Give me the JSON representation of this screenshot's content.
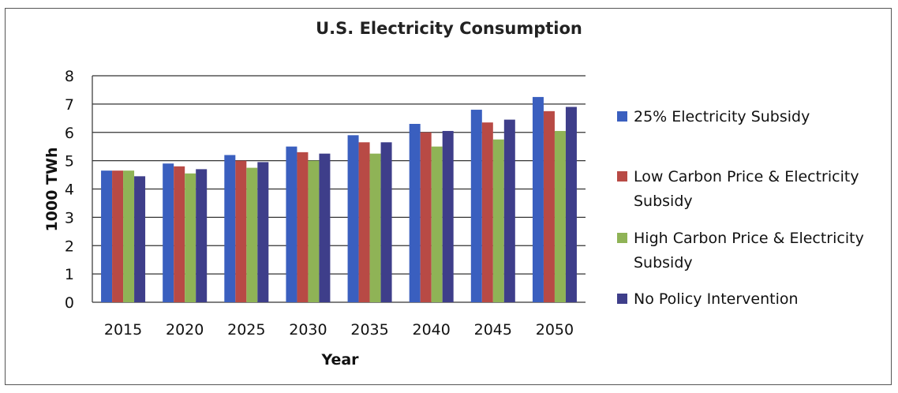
{
  "chart_data": {
    "type": "bar",
    "title": "U.S. Electricity Consumption",
    "xlabel": "Year",
    "ylabel": "1000 TWh",
    "ylim": [
      0,
      8
    ],
    "yticks": [
      "0",
      "1",
      "2",
      "3",
      "4",
      "5",
      "6",
      "7",
      "8"
    ],
    "grid": true,
    "legend_position": "right",
    "categories": [
      "2015",
      "2020",
      "2025",
      "2030",
      "2035",
      "2040",
      "2045",
      "2050"
    ],
    "series": [
      {
        "name": "25% Electricity Subsidy",
        "color": "#3a5fbf",
        "values": [
          4.65,
          4.9,
          5.2,
          5.5,
          5.9,
          6.3,
          6.8,
          7.25
        ]
      },
      {
        "name": "Low Carbon Price & Electricity Subsidy",
        "color": "#b84a45",
        "values": [
          4.65,
          4.8,
          5.0,
          5.3,
          5.65,
          6.0,
          6.35,
          6.75
        ]
      },
      {
        "name": "High Carbon Price & Electricity Subsidy",
        "color": "#8fb356",
        "values": [
          4.65,
          4.55,
          4.75,
          5.0,
          5.25,
          5.5,
          5.75,
          6.05
        ]
      },
      {
        "name": "No Policy Intervention",
        "color": "#3e3e8a",
        "values": [
          4.45,
          4.7,
          4.95,
          5.25,
          5.65,
          6.05,
          6.45,
          6.9
        ]
      }
    ]
  }
}
